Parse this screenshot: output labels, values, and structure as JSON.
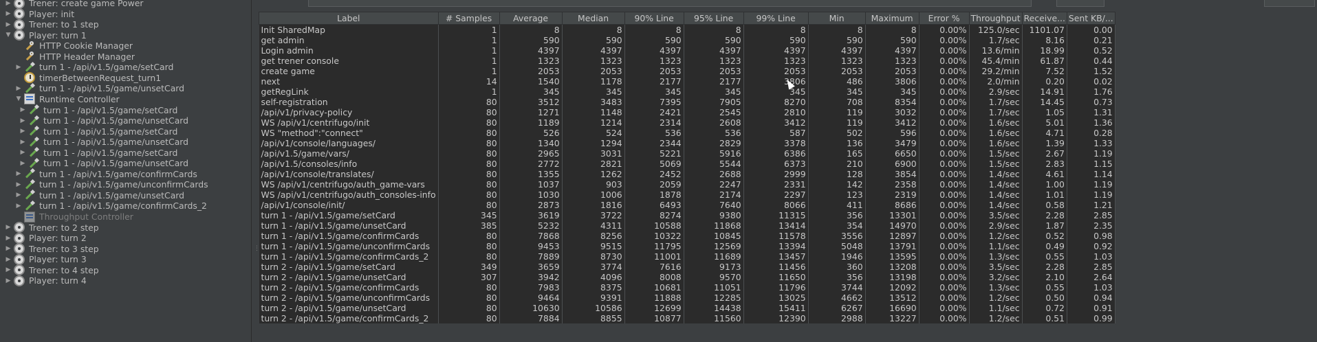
{
  "tree": [
    {
      "depth": 0,
      "arrow": "right",
      "icon": "gear",
      "label": "Trener: create game Power"
    },
    {
      "depth": 0,
      "arrow": "right",
      "icon": "gear",
      "label": "Player:  init"
    },
    {
      "depth": 0,
      "arrow": "right",
      "icon": "gear",
      "label": "Trener: to 1 step"
    },
    {
      "depth": 0,
      "arrow": "down",
      "icon": "gear",
      "label": "Player: turn 1"
    },
    {
      "depth": 1,
      "arrow": "none",
      "icon": "wrench",
      "label": "HTTP Cookie Manager"
    },
    {
      "depth": 1,
      "arrow": "none",
      "icon": "wrench",
      "label": "HTTP Header Manager"
    },
    {
      "depth": 1,
      "arrow": "right",
      "icon": "pipette",
      "label": "turn 1 - /api/v1.5/game/setCard"
    },
    {
      "depth": 1,
      "arrow": "none",
      "icon": "timer",
      "label": "timerBetweenRequest_turn1"
    },
    {
      "depth": 1,
      "arrow": "right",
      "icon": "pipette",
      "label": "turn 1 - /api/v1.5/game/unsetCard"
    },
    {
      "depth": 1,
      "arrow": "down",
      "icon": "ctrl",
      "label": "Runtime Controller"
    },
    {
      "depth": 2,
      "arrow": "right",
      "icon": "pipette",
      "label": "turn 1 - /api/v1.5/game/setCard"
    },
    {
      "depth": 2,
      "arrow": "right",
      "icon": "pipette",
      "label": "turn 1 - /api/v1.5/game/unsetCard"
    },
    {
      "depth": 2,
      "arrow": "right",
      "icon": "pipette",
      "label": "turn 1 - /api/v1.5/game/setCard"
    },
    {
      "depth": 2,
      "arrow": "right",
      "icon": "pipette",
      "label": "turn 1 - /api/v1.5/game/unsetCard"
    },
    {
      "depth": 2,
      "arrow": "right",
      "icon": "pipette",
      "label": "turn 1 - /api/v1.5/game/setCard"
    },
    {
      "depth": 2,
      "arrow": "right",
      "icon": "pipette",
      "label": "turn 1 - /api/v1.5/game/unsetCard"
    },
    {
      "depth": 1,
      "arrow": "right",
      "icon": "pipette",
      "label": "turn 1 - /api/v1.5/game/confirmCards"
    },
    {
      "depth": 1,
      "arrow": "right",
      "icon": "pipette",
      "label": "turn 1 - /api/v1.5/game/unconfirmCards"
    },
    {
      "depth": 1,
      "arrow": "right",
      "icon": "pipette",
      "label": "turn 1 - /api/v1.5/game/unsetCard"
    },
    {
      "depth": 1,
      "arrow": "right",
      "icon": "pipette",
      "label": "turn 1 - /api/v1.5/game/confirmCards_2"
    },
    {
      "depth": 1,
      "arrow": "none",
      "icon": "ctrl-dim",
      "label": "Throughput Controller",
      "disabled": true
    },
    {
      "depth": 0,
      "arrow": "right",
      "icon": "gear",
      "label": "Trener: to 2 step"
    },
    {
      "depth": 0,
      "arrow": "right",
      "icon": "gear",
      "label": "Player: turn 2"
    },
    {
      "depth": 0,
      "arrow": "right",
      "icon": "gear",
      "label": "Trener: to 3 step"
    },
    {
      "depth": 0,
      "arrow": "right",
      "icon": "gear",
      "label": "Player: turn 3"
    },
    {
      "depth": 0,
      "arrow": "right",
      "icon": "gear",
      "label": "Trener: to 4 step"
    },
    {
      "depth": 0,
      "arrow": "right",
      "icon": "gear",
      "label": "Player: turn 4"
    }
  ],
  "table": {
    "headers": [
      "Label",
      "# Samples",
      "Average",
      "Median",
      "90% Line",
      "95% Line",
      "99% Line",
      "Min",
      "Maximum",
      "Error %",
      "Throughput",
      "Receive...",
      "Sent KB/..."
    ],
    "rows": [
      [
        "Init SharedMap",
        "1",
        "8",
        "8",
        "8",
        "8",
        "8",
        "8",
        "8",
        "0.00%",
        "125.0/sec",
        "1101.07",
        "0.00"
      ],
      [
        "get admin",
        "1",
        "590",
        "590",
        "590",
        "590",
        "590",
        "590",
        "590",
        "0.00%",
        "1.7/sec",
        "8.16",
        "0.21"
      ],
      [
        "Login admin",
        "1",
        "4397",
        "4397",
        "4397",
        "4397",
        "4397",
        "4397",
        "4397",
        "0.00%",
        "13.6/min",
        "18.99",
        "0.52"
      ],
      [
        "get trener console",
        "1",
        "1323",
        "1323",
        "1323",
        "1323",
        "1323",
        "1323",
        "1323",
        "0.00%",
        "45.4/min",
        "61.87",
        "0.44"
      ],
      [
        "create game",
        "1",
        "2053",
        "2053",
        "2053",
        "2053",
        "2053",
        "2053",
        "2053",
        "0.00%",
        "29.2/min",
        "7.52",
        "1.52"
      ],
      [
        "next",
        "14",
        "1540",
        "1178",
        "2177",
        "2177",
        "3806",
        "486",
        "3806",
        "0.00%",
        "2.0/min",
        "0.20",
        "0.02"
      ],
      [
        "getRegLink",
        "1",
        "345",
        "345",
        "345",
        "345",
        "345",
        "345",
        "345",
        "0.00%",
        "2.9/sec",
        "14.91",
        "1.76"
      ],
      [
        "self-registration",
        "80",
        "3512",
        "3483",
        "7395",
        "7905",
        "8270",
        "708",
        "8354",
        "0.00%",
        "1.7/sec",
        "14.45",
        "0.73"
      ],
      [
        "/api/v1/privacy-policy",
        "80",
        "1271",
        "1148",
        "2421",
        "2545",
        "2810",
        "119",
        "3032",
        "0.00%",
        "1.7/sec",
        "1.05",
        "1.31"
      ],
      [
        "WS /api/v1/centrifugo/init",
        "80",
        "1189",
        "1214",
        "2314",
        "2608",
        "3412",
        "119",
        "3412",
        "0.00%",
        "1.6/sec",
        "5.01",
        "1.36"
      ],
      [
        "WS \"method\":\"connect\"",
        "80",
        "526",
        "524",
        "536",
        "536",
        "587",
        "502",
        "596",
        "0.00%",
        "1.6/sec",
        "4.71",
        "0.28"
      ],
      [
        "/api/v1/console/languages/",
        "80",
        "1340",
        "1294",
        "2344",
        "2829",
        "3378",
        "136",
        "3479",
        "0.00%",
        "1.6/sec",
        "1.39",
        "1.33"
      ],
      [
        "/api/v1.5/game/vars/",
        "80",
        "2965",
        "3031",
        "5221",
        "5916",
        "6386",
        "165",
        "6650",
        "0.00%",
        "1.5/sec",
        "2.67",
        "1.19"
      ],
      [
        "/api/v1.5/consoles/info",
        "80",
        "2772",
        "2821",
        "5069",
        "5544",
        "6373",
        "210",
        "6900",
        "0.00%",
        "1.5/sec",
        "2.83",
        "1.15"
      ],
      [
        "/api/v1/console/translates/",
        "80",
        "1355",
        "1262",
        "2452",
        "2688",
        "2999",
        "128",
        "3854",
        "0.00%",
        "1.4/sec",
        "4.61",
        "1.14"
      ],
      [
        "WS /api/v1/centrifugo/auth_game-vars",
        "80",
        "1037",
        "903",
        "2059",
        "2247",
        "2331",
        "142",
        "2358",
        "0.00%",
        "1.4/sec",
        "1.00",
        "1.19"
      ],
      [
        "WS /api/v1/centrifugo/auth_consoles-info",
        "80",
        "1030",
        "1006",
        "1878",
        "2174",
        "2297",
        "123",
        "2319",
        "0.00%",
        "1.4/sec",
        "1.01",
        "1.19"
      ],
      [
        "/api/v1/console/init/",
        "80",
        "2873",
        "1816",
        "6493",
        "7640",
        "8066",
        "411",
        "8686",
        "0.00%",
        "1.4/sec",
        "0.58",
        "1.21"
      ],
      [
        "turn 1 - /api/v1.5/game/setCard",
        "345",
        "3619",
        "3722",
        "8274",
        "9380",
        "11315",
        "356",
        "13301",
        "0.00%",
        "3.5/sec",
        "2.28",
        "2.85"
      ],
      [
        "turn 1 - /api/v1.5/game/unsetCard",
        "385",
        "5232",
        "4311",
        "10588",
        "11868",
        "13414",
        "354",
        "14970",
        "0.00%",
        "2.9/sec",
        "1.87",
        "2.35"
      ],
      [
        "turn 1 - /api/v1.5/game/confirmCards",
        "80",
        "7868",
        "8256",
        "10322",
        "10845",
        "11578",
        "3556",
        "12897",
        "0.00%",
        "1.2/sec",
        "0.52",
        "0.98"
      ],
      [
        "turn 1 - /api/v1.5/game/unconfirmCards",
        "80",
        "9453",
        "9515",
        "11795",
        "12569",
        "13394",
        "5048",
        "13791",
        "0.00%",
        "1.1/sec",
        "0.49",
        "0.92"
      ],
      [
        "turn 1 - /api/v1.5/game/confirmCards_2",
        "80",
        "7889",
        "8730",
        "11001",
        "11689",
        "13457",
        "1946",
        "13595",
        "0.00%",
        "1.3/sec",
        "0.55",
        "1.03"
      ],
      [
        "turn 2 - /api/v1.5/game/setCard",
        "349",
        "3659",
        "3774",
        "7616",
        "9173",
        "11456",
        "360",
        "13208",
        "0.00%",
        "3.5/sec",
        "2.28",
        "2.85"
      ],
      [
        "turn 2 - /api/v1.5/game/unsetCard",
        "307",
        "3942",
        "4096",
        "8008",
        "9570",
        "11650",
        "356",
        "13198",
        "0.00%",
        "3.2/sec",
        "2.10",
        "2.64"
      ],
      [
        "turn 2 - /api/v1.5/game/confirmCards",
        "80",
        "7983",
        "8375",
        "10681",
        "11051",
        "11796",
        "3744",
        "12092",
        "0.00%",
        "1.3/sec",
        "0.55",
        "1.03"
      ],
      [
        "turn 2 - /api/v1.5/game/unconfirmCards",
        "80",
        "9464",
        "9391",
        "11888",
        "12285",
        "13025",
        "4662",
        "13512",
        "0.00%",
        "1.2/sec",
        "0.50",
        "0.94"
      ],
      [
        "turn 2 -  /api/v1.5/game/unsetCard",
        "80",
        "10630",
        "10586",
        "12699",
        "14438",
        "15411",
        "6267",
        "16690",
        "0.00%",
        "1.1/sec",
        "0.72",
        "0.91"
      ],
      [
        "turn 2 - /api/v1.5/game/confirmCards_2",
        "80",
        "7884",
        "8855",
        "10877",
        "11560",
        "12390",
        "2988",
        "13227",
        "0.00%",
        "1.2/sec",
        "0.51",
        "0.99"
      ]
    ]
  }
}
